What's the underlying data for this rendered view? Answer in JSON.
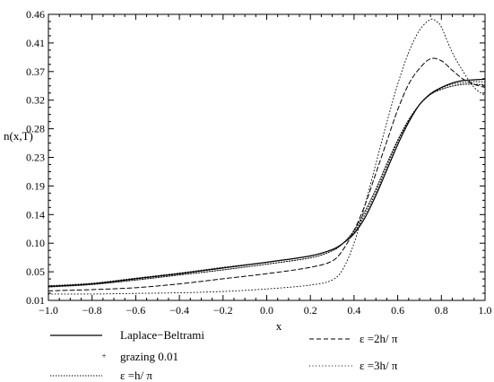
{
  "chart_data": {
    "type": "line",
    "ylabel": "n(x,T)",
    "xlabel": "x",
    "xlim": [
      -1.0,
      1.0
    ],
    "ylim": [
      0.01,
      0.46
    ],
    "x_ticks": [
      "-1.0",
      "-0.8",
      "-0.6",
      "-0.4",
      "-0.2",
      "0.0",
      "0.2",
      "0.4",
      "0.6",
      "0.8",
      "1.0"
    ],
    "y_ticks": [
      "0.01",
      "0.05",
      "0.10",
      "0.14",
      "0.19",
      "0.23",
      "0.28",
      "0.32",
      "0.37",
      "0.41",
      "0.46"
    ],
    "grid": false,
    "legend_position": "bottom",
    "series": [
      {
        "name": "Laplace−Beltrami",
        "style": "solid",
        "x": [
          -1.0,
          -0.8,
          -0.6,
          -0.4,
          -0.2,
          0.0,
          0.2,
          0.3,
          0.35,
          0.4,
          0.45,
          0.5,
          0.55,
          0.6,
          0.65,
          0.7,
          0.75,
          0.8,
          0.85,
          0.9,
          0.95,
          1.0
        ],
        "y": [
          0.032,
          0.036,
          0.044,
          0.052,
          0.061,
          0.07,
          0.08,
          0.09,
          0.1,
          0.115,
          0.14,
          0.175,
          0.215,
          0.255,
          0.29,
          0.318,
          0.335,
          0.345,
          0.352,
          0.356,
          0.357,
          0.358
        ]
      },
      {
        "name": "grazing 0.01",
        "style": "plus",
        "x": [
          -1.0,
          -0.8,
          -0.6,
          -0.4,
          -0.2,
          0.0,
          0.2,
          0.3,
          0.35,
          0.4,
          0.45,
          0.5,
          0.55,
          0.6,
          0.65,
          0.7,
          0.75,
          0.8,
          0.85,
          0.9,
          0.95,
          1.0
        ],
        "y": [
          0.033,
          0.037,
          0.045,
          0.053,
          0.062,
          0.07,
          0.08,
          0.09,
          0.1,
          0.117,
          0.145,
          0.18,
          0.22,
          0.26,
          0.292,
          0.318,
          0.334,
          0.344,
          0.35,
          0.353,
          0.354,
          0.354
        ]
      },
      {
        "name": "ε =h/ π",
        "style": "dotted-tight",
        "x": [
          -1.0,
          -0.8,
          -0.6,
          -0.4,
          -0.2,
          0.0,
          0.2,
          0.3,
          0.35,
          0.4,
          0.45,
          0.5,
          0.55,
          0.6,
          0.65,
          0.7,
          0.75,
          0.8,
          0.85,
          0.9,
          0.95,
          1.0
        ],
        "y": [
          0.031,
          0.035,
          0.042,
          0.05,
          0.058,
          0.067,
          0.077,
          0.088,
          0.1,
          0.12,
          0.15,
          0.185,
          0.225,
          0.262,
          0.294,
          0.318,
          0.334,
          0.342,
          0.347,
          0.35,
          0.35,
          0.349
        ]
      },
      {
        "name": "ε =2h/ π",
        "style": "dashed",
        "x": [
          -1.0,
          -0.8,
          -0.6,
          -0.4,
          -0.2,
          0.0,
          0.2,
          0.3,
          0.35,
          0.4,
          0.45,
          0.5,
          0.55,
          0.6,
          0.65,
          0.7,
          0.75,
          0.8,
          0.85,
          0.9,
          0.95,
          1.0
        ],
        "y": [
          0.025,
          0.027,
          0.03,
          0.036,
          0.044,
          0.052,
          0.062,
          0.072,
          0.09,
          0.12,
          0.16,
          0.21,
          0.26,
          0.31,
          0.35,
          0.375,
          0.39,
          0.387,
          0.372,
          0.358,
          0.35,
          0.345
        ]
      },
      {
        "name": "ε =3h/ π",
        "style": "dotted-sparse",
        "x": [
          -1.0,
          -0.8,
          -0.6,
          -0.4,
          -0.2,
          0.0,
          0.2,
          0.3,
          0.35,
          0.4,
          0.45,
          0.5,
          0.55,
          0.6,
          0.65,
          0.7,
          0.75,
          0.78,
          0.8,
          0.85,
          0.9,
          0.95,
          1.0
        ],
        "y": [
          0.02,
          0.02,
          0.021,
          0.022,
          0.024,
          0.028,
          0.034,
          0.042,
          0.06,
          0.1,
          0.16,
          0.225,
          0.29,
          0.35,
          0.4,
          0.435,
          0.452,
          0.448,
          0.44,
          0.4,
          0.37,
          0.345,
          0.332
        ]
      }
    ]
  }
}
